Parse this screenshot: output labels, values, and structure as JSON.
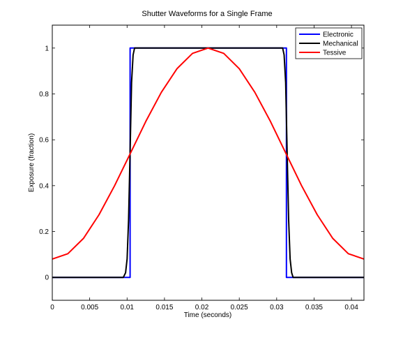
{
  "chart_data": {
    "type": "line",
    "title": "Shutter Waveforms for a Single Frame",
    "xlabel": "Time (seconds)",
    "ylabel": "Exposure (fraction)",
    "xlim": [
      0,
      0.04167
    ],
    "ylim": [
      -0.1,
      1.1
    ],
    "xticks": [
      0,
      0.005,
      0.01,
      0.015,
      0.02,
      0.025,
      0.03,
      0.035,
      0.04
    ],
    "xtick_labels": [
      "0",
      "0.005",
      "0.01",
      "0.015",
      "0.02",
      "0.025",
      "0.03",
      "0.035",
      "0.04"
    ],
    "yticks": [
      0,
      0.2,
      0.4,
      0.6,
      0.8,
      1
    ],
    "ytick_labels": [
      "0",
      "0.2",
      "0.4",
      "0.6",
      "0.8",
      "1"
    ],
    "grid": false,
    "legend_position": "top-right",
    "series": [
      {
        "name": "Electronic",
        "color": "#0000ff",
        "x": [
          0,
          0.0104,
          0.0104,
          0.0313,
          0.0313,
          0.04167
        ],
        "y": [
          0,
          0,
          1,
          1,
          0,
          0
        ]
      },
      {
        "name": "Mechanical",
        "color": "#000000",
        "x": [
          0,
          0.0095,
          0.0098,
          0.01,
          0.0102,
          0.0104,
          0.0106,
          0.0108,
          0.011,
          0.0113,
          0.0308,
          0.031,
          0.0312,
          0.0314,
          0.0316,
          0.0318,
          0.032,
          0.0322,
          0.04167
        ],
        "y": [
          0,
          0,
          0.02,
          0.08,
          0.25,
          0.55,
          0.85,
          0.97,
          1,
          1,
          1,
          0.97,
          0.85,
          0.55,
          0.25,
          0.08,
          0.02,
          0,
          0
        ]
      },
      {
        "name": "Tessive",
        "color": "#ff0000",
        "x": [
          0,
          0.00208,
          0.00417,
          0.00625,
          0.00833,
          0.01042,
          0.0125,
          0.01458,
          0.01667,
          0.01875,
          0.02083,
          0.02292,
          0.025,
          0.02708,
          0.02917,
          0.03125,
          0.03333,
          0.03542,
          0.0375,
          0.03958,
          0.04167
        ],
        "y": [
          0.08,
          0.103,
          0.17,
          0.273,
          0.4,
          0.54,
          0.68,
          0.807,
          0.91,
          0.977,
          1,
          0.977,
          0.91,
          0.807,
          0.68,
          0.54,
          0.4,
          0.273,
          0.17,
          0.103,
          0.08
        ]
      }
    ]
  }
}
